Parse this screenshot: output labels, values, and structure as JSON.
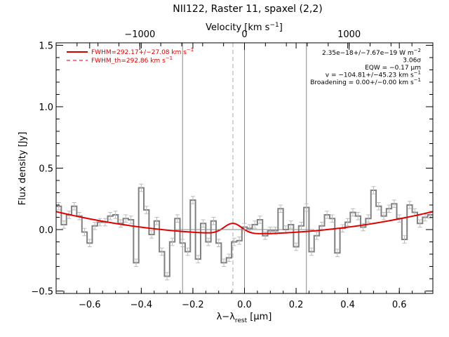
{
  "chart_data": {
    "type": "line",
    "title": "NII122, Raster 11, spaxel (2,2)",
    "xlabel": "λ−λ",
    "xlabel_sub": "rest",
    "xlabel_unit": " [μm]",
    "ylabel": "Flux density [Jy]",
    "top_xlabel": "Velocity [km s",
    "top_xlabel_sup": "−1",
    "top_xlabel_close": "]",
    "xlim": [
      -0.73,
      0.73
    ],
    "ylim": [
      -0.52,
      1.52
    ],
    "top_xlim": [
      -1800,
      1800
    ],
    "xticks": [
      -0.6,
      -0.4,
      -0.2,
      0.0,
      0.2,
      0.4,
      0.6
    ],
    "xtick_labels": [
      "−0.6",
      "−0.4",
      "−0.2",
      "0.0",
      "0.2",
      "0.4",
      "0.6"
    ],
    "yticks": [
      -0.5,
      0.0,
      0.5,
      1.0,
      1.5
    ],
    "ytick_labels": [
      "−0.5",
      "0.0",
      "0.5",
      "1.0",
      "1.5"
    ],
    "top_xticks": [
      -1000,
      0,
      1000
    ],
    "top_xtick_labels": [
      "−1000",
      "0",
      "1000"
    ],
    "vlines": [
      -0.24,
      0.0,
      0.24
    ],
    "vline_dashed": -0.045,
    "series": [
      {
        "name": "data",
        "style": "step",
        "color": "#808080",
        "x": [
          -0.72,
          -0.7,
          -0.68,
          -0.66,
          -0.64,
          -0.62,
          -0.6,
          -0.58,
          -0.56,
          -0.54,
          -0.52,
          -0.5,
          -0.48,
          -0.46,
          -0.44,
          -0.42,
          -0.4,
          -0.38,
          -0.36,
          -0.34,
          -0.32,
          -0.3,
          -0.28,
          -0.26,
          -0.24,
          -0.22,
          -0.2,
          -0.18,
          -0.16,
          -0.14,
          -0.12,
          -0.1,
          -0.08,
          -0.06,
          -0.04,
          -0.02,
          0.0,
          0.02,
          0.04,
          0.06,
          0.08,
          0.1,
          0.12,
          0.14,
          0.16,
          0.18,
          0.2,
          0.22,
          0.24,
          0.26,
          0.28,
          0.3,
          0.32,
          0.34,
          0.36,
          0.38,
          0.4,
          0.42,
          0.44,
          0.46,
          0.48,
          0.5,
          0.52,
          0.54,
          0.56,
          0.58,
          0.6,
          0.62,
          0.64,
          0.66,
          0.68,
          0.7,
          0.72
        ],
        "y": [
          0.19,
          0.04,
          0.12,
          0.19,
          0.11,
          -0.02,
          -0.11,
          0.03,
          0.06,
          0.06,
          0.11,
          0.12,
          0.05,
          0.09,
          0.08,
          -0.27,
          0.34,
          0.16,
          -0.04,
          0.07,
          -0.18,
          -0.38,
          -0.1,
          0.09,
          -0.11,
          -0.18,
          0.24,
          -0.24,
          0.05,
          -0.1,
          0.07,
          -0.11,
          -0.27,
          -0.23,
          -0.1,
          -0.09,
          0.02,
          0.01,
          0.04,
          0.08,
          -0.05,
          -0.01,
          -0.01,
          0.17,
          0.0,
          0.04,
          -0.14,
          0.03,
          0.18,
          -0.18,
          -0.05,
          0.03,
          0.12,
          0.09,
          -0.19,
          0.01,
          0.06,
          0.14,
          0.11,
          0.02,
          0.09,
          0.32,
          0.19,
          0.11,
          0.17,
          0.21,
          0.09,
          -0.08,
          0.2,
          0.14,
          0.05,
          0.1,
          0.12
        ],
        "err": 0.03
      },
      {
        "name": "fit",
        "style": "line",
        "color": "#e00000",
        "baseline": {
          "c0": -0.035,
          "c2": 0.34
        },
        "gaussian": {
          "center": -0.045,
          "amp": 0.085,
          "sigma": 0.034
        }
      }
    ],
    "legend": [
      {
        "label": "FWHM=292.17+/−27.08 km s",
        "sup": "−1",
        "style": "solid",
        "color": "#d40000"
      },
      {
        "label": "FWHM_th=292.86 km s",
        "sup": "−1",
        "style": "dashed",
        "color": "#d40000"
      }
    ],
    "legend_position": "top-left",
    "annotations": [
      {
        "text": "2.35e−18+/−7.67e−19 W m",
        "sup": "−2"
      },
      {
        "text": "3.06σ",
        "sup": ""
      },
      {
        "text": "EQW = −0.17 μm",
        "sup": ""
      },
      {
        "text": "v = −104.81+/−45.23 km s",
        "sup": "−1"
      },
      {
        "text": "Broadening = 0.00+/−0.00 km s",
        "sup": "−1"
      }
    ],
    "annotation_position": "top-right",
    "grid": false
  }
}
